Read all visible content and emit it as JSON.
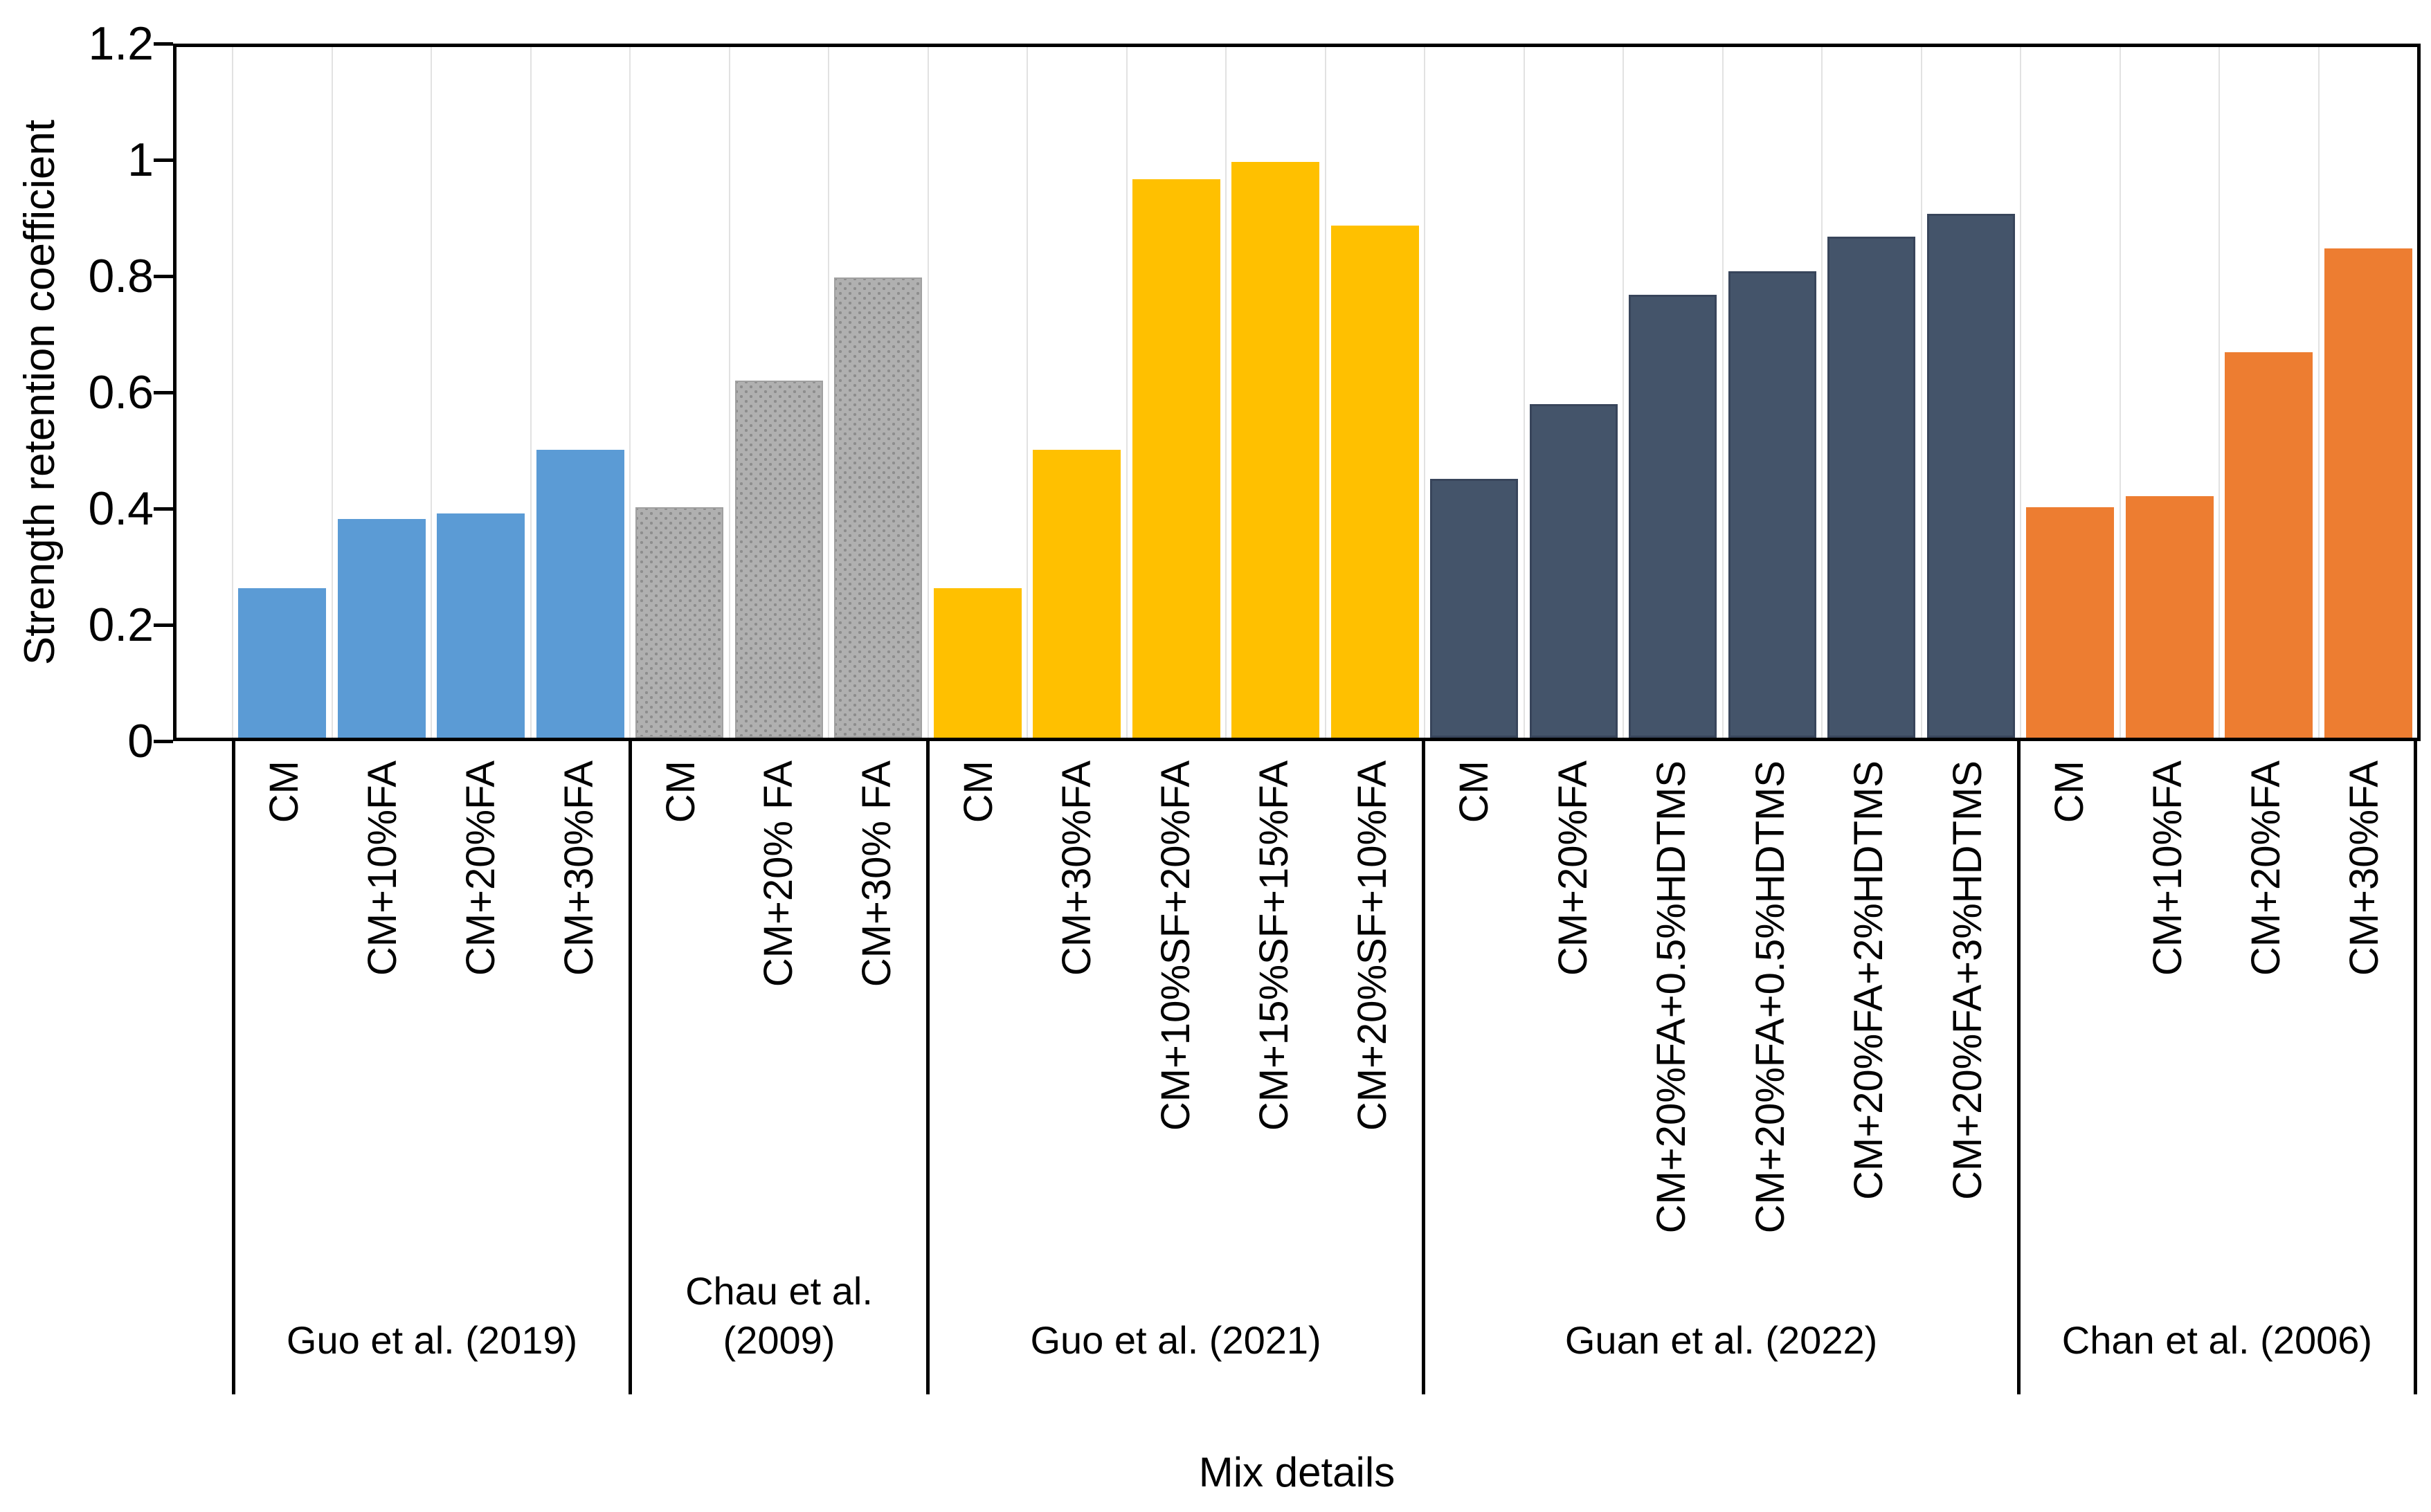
{
  "chart_data": {
    "type": "bar",
    "title": "",
    "xlabel": "Mix details",
    "ylabel": "Strength retention coefficient",
    "ylim": [
      0,
      1.2
    ],
    "y_ticks": [
      0,
      0.2,
      0.4,
      0.6,
      0.8,
      1,
      1.2
    ],
    "y_tick_labels": [
      "0",
      "0.2",
      "0.4",
      "0.6",
      "0.8",
      "1",
      "1.2"
    ],
    "grid": "vertical category gridlines only",
    "legend": "none",
    "groups": [
      {
        "source": "Guo et al. (2019)",
        "color": "#5B9BD5",
        "pattern": "solid",
        "bars": [
          {
            "label": "CM",
            "value": 0.26
          },
          {
            "label": "CM+10%FA",
            "value": 0.38
          },
          {
            "label": "CM+20%FA",
            "value": 0.39
          },
          {
            "label": "CM+30%FA",
            "value": 0.5
          }
        ]
      },
      {
        "source": "Chau et al. (2009)",
        "color": "#A6A6A6",
        "pattern": "dots",
        "bars": [
          {
            "label": "CM",
            "value": 0.4
          },
          {
            "label": "CM+20% FA",
            "value": 0.62
          },
          {
            "label": "CM+30% FA",
            "value": 0.8
          }
        ]
      },
      {
        "source": "Guo et al. (2021)",
        "color": "#FFC000",
        "pattern": "solid",
        "bars": [
          {
            "label": "CM",
            "value": 0.26
          },
          {
            "label": "CM+30%FA",
            "value": 0.5
          },
          {
            "label": "CM+10%SF+20%FA",
            "value": 0.97
          },
          {
            "label": "CM+15%SF+15%FA",
            "value": 1.0
          },
          {
            "label": "CM+20%SF+10%FA",
            "value": 0.89
          }
        ]
      },
      {
        "source": "Guan et al. (2022)",
        "color": "#44546A",
        "pattern": "solid",
        "bars": [
          {
            "label": "CM",
            "value": 0.45
          },
          {
            "label": "CM+20%FA",
            "value": 0.58
          },
          {
            "label": "CM+20%FA+0.5%HDTMS",
            "value": 0.77
          },
          {
            "label": "CM+20%FA+0.5%HDTMS",
            "value": 0.81
          },
          {
            "label": "CM+20%FA+2%HDTMS",
            "value": 0.87
          },
          {
            "label": "CM+20%FA+3%HDTMS",
            "value": 0.91
          }
        ]
      },
      {
        "source": "Chan et al. (2006)",
        "color": "#ED7D31",
        "pattern": "solid",
        "bars": [
          {
            "label": "CM",
            "value": 0.4
          },
          {
            "label": "CM+10%FA",
            "value": 0.42
          },
          {
            "label": "CM+20%FA",
            "value": 0.67
          },
          {
            "label": "CM+30%FA",
            "value": 0.85
          }
        ]
      }
    ]
  }
}
